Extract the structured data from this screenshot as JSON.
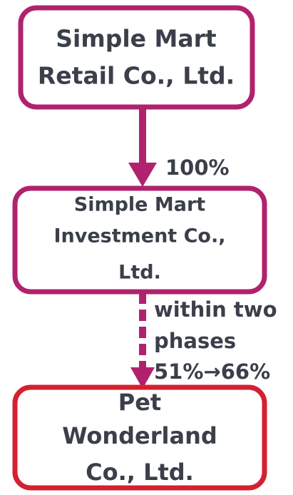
{
  "nodes": [
    {
      "lines": [
        "Simple Mart",
        "Retail Co., Ltd."
      ]
    },
    {
      "lines": [
        "Simple Mart",
        "Investment Co.,",
        "Ltd."
      ]
    },
    {
      "lines": [
        "Pet",
        "Wonderland",
        "Co., Ltd."
      ]
    }
  ],
  "edges": [
    {
      "lines": [
        "100%"
      ]
    },
    {
      "lines": [
        "within two",
        "phases",
        "51%→66%"
      ]
    }
  ]
}
